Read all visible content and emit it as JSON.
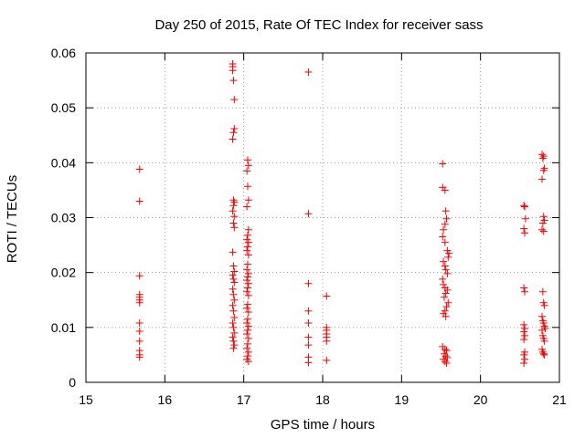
{
  "chart_data": {
    "type": "scatter",
    "title": "Day 250 of 2015, Rate Of TEC Index for receiver sass",
    "xlabel": "GPS time / hours",
    "ylabel": "ROTI / TECUs",
    "xlim": [
      15,
      21
    ],
    "ylim": [
      0,
      0.06
    ],
    "x_ticks": [
      "15",
      "16",
      "17",
      "18",
      "19",
      "20",
      "21"
    ],
    "y_ticks": [
      "0",
      "0.01",
      "0.02",
      "0.03",
      "0.04",
      "0.05",
      "0.06"
    ],
    "grid": true,
    "marker": "+",
    "color": "#ff0000",
    "series": [
      {
        "name": "ROTI",
        "points": [
          [
            15.68,
            0.0388
          ],
          [
            15.68,
            0.033
          ],
          [
            15.68,
            0.0194
          ],
          [
            15.68,
            0.016
          ],
          [
            15.68,
            0.0155
          ],
          [
            15.68,
            0.015
          ],
          [
            15.68,
            0.0145
          ],
          [
            15.68,
            0.0108
          ],
          [
            15.68,
            0.0093
          ],
          [
            15.68,
            0.0075
          ],
          [
            15.68,
            0.0058
          ],
          [
            15.68,
            0.005
          ],
          [
            15.68,
            0.0046
          ],
          [
            16.86,
            0.058
          ],
          [
            16.86,
            0.0575
          ],
          [
            16.86,
            0.0568
          ],
          [
            16.87,
            0.055
          ],
          [
            16.88,
            0.0515
          ],
          [
            16.88,
            0.0462
          ],
          [
            16.87,
            0.0455
          ],
          [
            16.86,
            0.0443
          ],
          [
            16.87,
            0.0332
          ],
          [
            16.88,
            0.0328
          ],
          [
            16.87,
            0.0322
          ],
          [
            16.86,
            0.0312
          ],
          [
            16.88,
            0.0302
          ],
          [
            16.87,
            0.029
          ],
          [
            16.88,
            0.0282
          ],
          [
            16.86,
            0.0237
          ],
          [
            16.87,
            0.0212
          ],
          [
            16.88,
            0.0202
          ],
          [
            16.86,
            0.0195
          ],
          [
            16.87,
            0.0188
          ],
          [
            16.88,
            0.0182
          ],
          [
            16.86,
            0.017
          ],
          [
            16.87,
            0.016
          ],
          [
            16.88,
            0.015
          ],
          [
            16.86,
            0.014
          ],
          [
            16.87,
            0.013
          ],
          [
            16.88,
            0.0118
          ],
          [
            16.86,
            0.0108
          ],
          [
            16.87,
            0.01
          ],
          [
            16.88,
            0.009
          ],
          [
            16.86,
            0.0082
          ],
          [
            16.87,
            0.0075
          ],
          [
            16.88,
            0.0068
          ],
          [
            16.87,
            0.0062
          ],
          [
            17.05,
            0.0405
          ],
          [
            17.06,
            0.0395
          ],
          [
            17.04,
            0.0385
          ],
          [
            17.05,
            0.0357
          ],
          [
            17.06,
            0.0332
          ],
          [
            17.04,
            0.032
          ],
          [
            17.06,
            0.0278
          ],
          [
            17.05,
            0.0268
          ],
          [
            17.04,
            0.026
          ],
          [
            17.06,
            0.0255
          ],
          [
            17.05,
            0.0247
          ],
          [
            17.04,
            0.024
          ],
          [
            17.06,
            0.0232
          ],
          [
            17.05,
            0.0215
          ],
          [
            17.04,
            0.0205
          ],
          [
            17.06,
            0.0198
          ],
          [
            17.05,
            0.0192
          ],
          [
            17.04,
            0.0186
          ],
          [
            17.06,
            0.018
          ],
          [
            17.05,
            0.0172
          ],
          [
            17.04,
            0.0165
          ],
          [
            17.06,
            0.0158
          ],
          [
            17.05,
            0.0142
          ],
          [
            17.04,
            0.0135
          ],
          [
            17.06,
            0.0128
          ],
          [
            17.05,
            0.0115
          ],
          [
            17.04,
            0.0108
          ],
          [
            17.06,
            0.0102
          ],
          [
            17.05,
            0.0095
          ],
          [
            17.04,
            0.0088
          ],
          [
            17.06,
            0.008
          ],
          [
            17.05,
            0.007
          ],
          [
            17.04,
            0.0062
          ],
          [
            17.06,
            0.0055
          ],
          [
            17.05,
            0.0048
          ],
          [
            17.04,
            0.0042
          ],
          [
            17.06,
            0.0038
          ],
          [
            17.82,
            0.0565
          ],
          [
            17.82,
            0.0307
          ],
          [
            17.82,
            0.018
          ],
          [
            17.82,
            0.013
          ],
          [
            17.82,
            0.0108
          ],
          [
            17.82,
            0.0082
          ],
          [
            17.82,
            0.0068
          ],
          [
            17.82,
            0.0046
          ],
          [
            17.82,
            0.0036
          ],
          [
            18.05,
            0.0157
          ],
          [
            18.05,
            0.01
          ],
          [
            18.05,
            0.0095
          ],
          [
            18.05,
            0.0088
          ],
          [
            18.05,
            0.0082
          ],
          [
            18.05,
            0.0075
          ],
          [
            18.05,
            0.004
          ],
          [
            19.52,
            0.0398
          ],
          [
            19.52,
            0.0355
          ],
          [
            19.55,
            0.035
          ],
          [
            19.56,
            0.0312
          ],
          [
            19.57,
            0.0298
          ],
          [
            19.55,
            0.0288
          ],
          [
            19.53,
            0.0278
          ],
          [
            19.52,
            0.0265
          ],
          [
            19.55,
            0.0255
          ],
          [
            19.58,
            0.024
          ],
          [
            19.6,
            0.0235
          ],
          [
            19.59,
            0.0228
          ],
          [
            19.53,
            0.022
          ],
          [
            19.55,
            0.0212
          ],
          [
            19.56,
            0.0205
          ],
          [
            19.58,
            0.0198
          ],
          [
            19.52,
            0.0188
          ],
          [
            19.53,
            0.0178
          ],
          [
            19.55,
            0.0172
          ],
          [
            19.58,
            0.0168
          ],
          [
            19.56,
            0.0162
          ],
          [
            19.54,
            0.0155
          ],
          [
            19.59,
            0.0145
          ],
          [
            19.57,
            0.0138
          ],
          [
            19.55,
            0.013
          ],
          [
            19.53,
            0.0125
          ],
          [
            19.56,
            0.012
          ],
          [
            19.52,
            0.0065
          ],
          [
            19.55,
            0.006
          ],
          [
            19.57,
            0.0058
          ],
          [
            19.54,
            0.0052
          ],
          [
            19.56,
            0.0048
          ],
          [
            19.58,
            0.0045
          ],
          [
            19.53,
            0.0042
          ],
          [
            19.55,
            0.0038
          ],
          [
            19.57,
            0.0035
          ],
          [
            20.55,
            0.0322
          ],
          [
            20.56,
            0.032
          ],
          [
            20.57,
            0.0298
          ],
          [
            20.55,
            0.028
          ],
          [
            20.56,
            0.0272
          ],
          [
            20.55,
            0.0172
          ],
          [
            20.56,
            0.0165
          ],
          [
            20.55,
            0.0105
          ],
          [
            20.56,
            0.0098
          ],
          [
            20.55,
            0.0092
          ],
          [
            20.56,
            0.0085
          ],
          [
            20.55,
            0.0078
          ],
          [
            20.56,
            0.0055
          ],
          [
            20.55,
            0.005
          ],
          [
            20.56,
            0.0042
          ],
          [
            20.55,
            0.0035
          ],
          [
            20.78,
            0.0415
          ],
          [
            20.8,
            0.0412
          ],
          [
            20.79,
            0.0408
          ],
          [
            20.81,
            0.039
          ],
          [
            20.8,
            0.0386
          ],
          [
            20.78,
            0.037
          ],
          [
            20.8,
            0.0302
          ],
          [
            20.81,
            0.0295
          ],
          [
            20.79,
            0.029
          ],
          [
            20.78,
            0.0278
          ],
          [
            20.8,
            0.0275
          ],
          [
            20.79,
            0.0165
          ],
          [
            20.8,
            0.0145
          ],
          [
            20.81,
            0.014
          ],
          [
            20.78,
            0.012
          ],
          [
            20.79,
            0.0112
          ],
          [
            20.8,
            0.0108
          ],
          [
            20.81,
            0.0102
          ],
          [
            20.82,
            0.0098
          ],
          [
            20.78,
            0.0095
          ],
          [
            20.79,
            0.0085
          ],
          [
            20.8,
            0.008
          ],
          [
            20.81,
            0.0075
          ],
          [
            20.78,
            0.006
          ],
          [
            20.79,
            0.0055
          ],
          [
            20.8,
            0.0052
          ],
          [
            20.81,
            0.005
          ]
        ]
      }
    ]
  }
}
